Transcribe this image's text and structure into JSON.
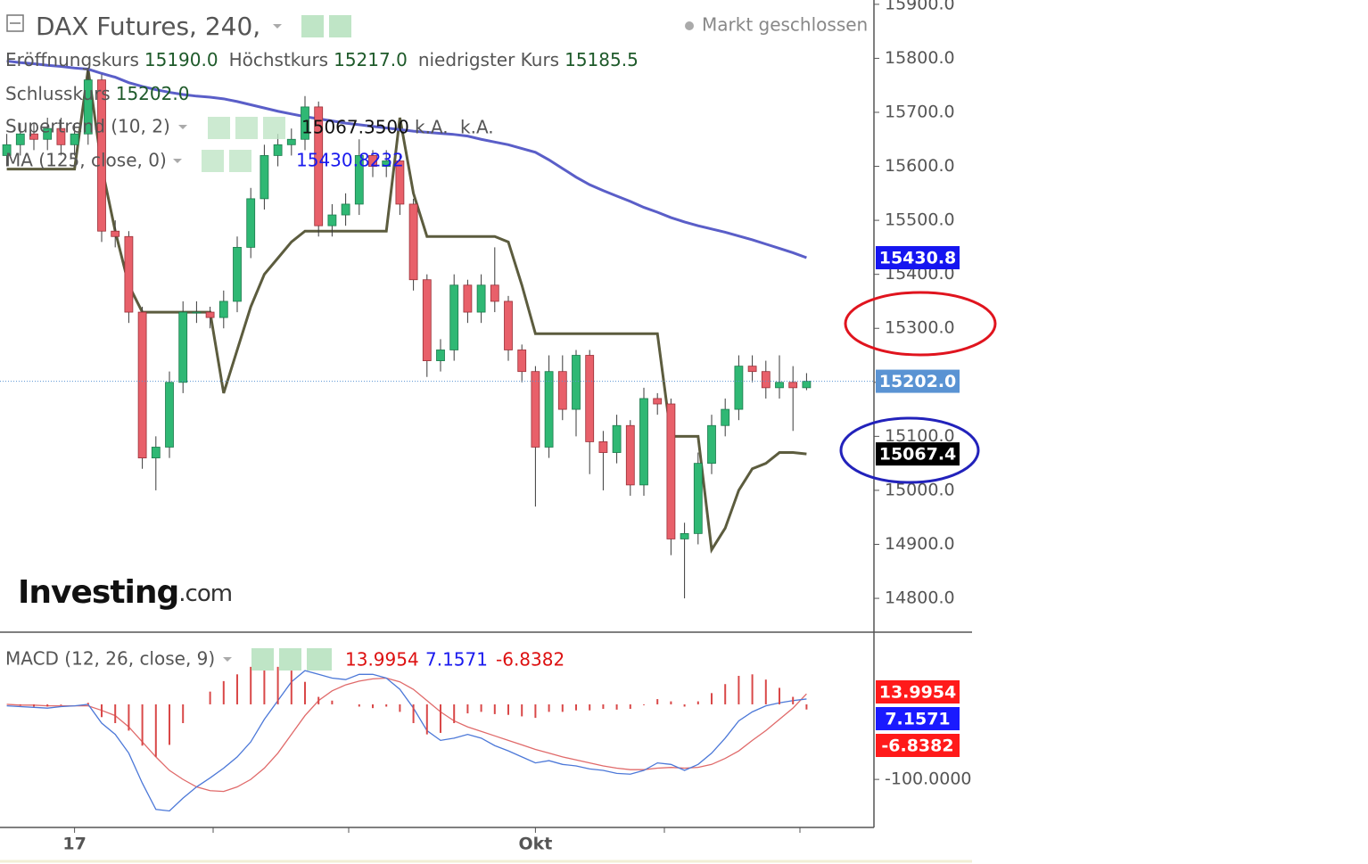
{
  "chart_data": [
    {
      "type": "candlestick",
      "title": "DAX Futures, 240,",
      "status": "Markt geschlossen",
      "ohlc_legend": [
        {
          "label": "Eröffnungskurs",
          "value": "15190.0"
        },
        {
          "label": "Höchstkurs",
          "value": "15217.0"
        },
        {
          "label": "niedrigster Kurs",
          "value": "15185.5"
        },
        {
          "label": "Schlusskurs",
          "value": "15202.0"
        }
      ],
      "logo": [
        "Investing",
        ".com"
      ],
      "categories": [
        null,
        null,
        null,
        null,
        null,
        "17",
        null,
        null,
        null,
        null,
        null,
        null,
        null,
        null,
        null,
        null,
        null,
        null,
        null,
        null,
        null,
        null,
        null,
        null,
        null,
        null,
        null,
        null,
        null,
        null,
        null,
        null,
        null,
        null,
        null,
        null,
        null,
        null,
        null,
        "Okt",
        null,
        null,
        null,
        null,
        null,
        null,
        null,
        null,
        null,
        null,
        null,
        null,
        null,
        null,
        null,
        null,
        null,
        null,
        null,
        null
      ],
      "open": [
        15620,
        15640,
        15660,
        15650,
        15670,
        15640,
        15660,
        15760,
        15480,
        15470,
        15330,
        15060,
        15080,
        15200,
        15330,
        15330,
        15320,
        15350,
        15450,
        15540,
        15620,
        15640,
        15650,
        15710,
        15490,
        15510,
        15530,
        15620,
        15600,
        15610,
        15530,
        15390,
        15240,
        15260,
        15380,
        15330,
        15380,
        15350,
        15260,
        15220,
        15080,
        15220,
        15150,
        15250,
        15090,
        15070,
        15120,
        15010,
        15170,
        15160,
        14910,
        14920,
        15050,
        15120,
        15150,
        15230,
        15220,
        15190,
        15200,
        15190
      ],
      "high": [
        15660,
        15680,
        15680,
        15690,
        15690,
        15680,
        15780,
        15770,
        15500,
        15480,
        15340,
        15100,
        15220,
        15350,
        15350,
        15340,
        15370,
        15470,
        15560,
        15640,
        15660,
        15670,
        15730,
        15720,
        15530,
        15550,
        15650,
        15630,
        15630,
        15620,
        15540,
        15400,
        15280,
        15400,
        15390,
        15400,
        15450,
        15360,
        15270,
        15230,
        15250,
        15250,
        15260,
        15260,
        15110,
        15140,
        15130,
        15190,
        15180,
        15170,
        14940,
        15070,
        15140,
        15170,
        15250,
        15250,
        15240,
        15250,
        15230,
        15217
      ],
      "low": [
        15600,
        15620,
        15630,
        15630,
        15620,
        15620,
        15640,
        15460,
        15450,
        15310,
        15040,
        15000,
        15060,
        15180,
        15310,
        15300,
        15300,
        15330,
        15430,
        15520,
        15600,
        15620,
        15630,
        15470,
        15470,
        15490,
        15510,
        15580,
        15580,
        15510,
        15370,
        15210,
        15220,
        15240,
        15310,
        15310,
        15330,
        15240,
        15200,
        14970,
        15060,
        15130,
        15100,
        15030,
        15000,
        15050,
        14990,
        14990,
        15140,
        14880,
        14800,
        14900,
        15030,
        15100,
        15130,
        15200,
        15170,
        15170,
        15110,
        15185.5
      ],
      "close": [
        15640,
        15660,
        15650,
        15670,
        15640,
        15660,
        15760,
        15480,
        15470,
        15330,
        15060,
        15080,
        15200,
        15330,
        15330,
        15320,
        15350,
        15450,
        15540,
        15620,
        15640,
        15650,
        15710,
        15490,
        15510,
        15530,
        15620,
        15600,
        15610,
        15530,
        15390,
        15240,
        15260,
        15380,
        15330,
        15380,
        15350,
        15260,
        15220,
        15080,
        15220,
        15150,
        15250,
        15090,
        15070,
        15120,
        15010,
        15170,
        15160,
        14910,
        14920,
        15050,
        15120,
        15150,
        15230,
        15220,
        15190,
        15200,
        15190,
        15202
      ],
      "up_color": "#2fb874",
      "down_color": "#e8606a",
      "ylim": [
        14739,
        15908
      ],
      "yticks": [
        {
          "value": 14800,
          "label": "14800.0"
        },
        {
          "value": 14900,
          "label": "14900.0"
        },
        {
          "value": 15000,
          "label": "15000.0"
        },
        {
          "value": 15100,
          "label": "15100.0"
        },
        {
          "value": 15200,
          "label": "15200.0"
        },
        {
          "value": 15300,
          "label": "15300.0"
        },
        {
          "value": 15400,
          "label": "15400.0"
        },
        {
          "value": 15500,
          "label": "15500.0"
        },
        {
          "value": 15600,
          "label": "15600.0"
        },
        {
          "value": 15700,
          "label": "15700.0"
        },
        {
          "value": 15800,
          "label": "15800.0"
        },
        {
          "value": 15900,
          "label": "15900.0"
        }
      ],
      "overlays": [
        {
          "name": "Supertrend (10, 2)",
          "color": "#5c5c3e",
          "value_label": "15067.3500",
          "extra_labels": [
            "k.A.",
            "k.A."
          ],
          "values": [
            15595,
            15595,
            15595,
            15595,
            15595,
            15595,
            15780,
            15600,
            15480,
            15380,
            15330,
            15330,
            15330,
            15330,
            15330,
            15330,
            15180,
            15260,
            15340,
            15400,
            15430,
            15460,
            15480,
            15480,
            15480,
            15480,
            15480,
            15480,
            15480,
            15690,
            15550,
            15470,
            15470,
            15470,
            15470,
            15470,
            15470,
            15460,
            15380,
            15290,
            15290,
            15290,
            15290,
            15290,
            15290,
            15290,
            15290,
            15290,
            15290,
            15100,
            15100,
            15100,
            14890,
            14930,
            15000,
            15040,
            15050,
            15070,
            15070,
            15067.35
          ]
        },
        {
          "name": "MA (125, close, 0)",
          "color": "#5a5ec8",
          "label_color": "#1a1aee",
          "values": [
            15795,
            15792,
            15790,
            15787,
            15785,
            15782,
            15780,
            15772,
            15765,
            15755,
            15748,
            15742,
            15737,
            15733,
            15730,
            15728,
            15725,
            15720,
            15714,
            15708,
            15702,
            15697,
            15692,
            15688,
            15684,
            15680,
            15677,
            15674,
            15671,
            15668,
            15665,
            15663,
            15661,
            15659,
            15656,
            15650,
            15645,
            15640,
            15633,
            15626,
            15612,
            15596,
            15580,
            15566,
            15555,
            15545,
            15535,
            15524,
            15515,
            15505,
            15497,
            15490,
            15484,
            15478,
            15471,
            15464,
            15456,
            15448,
            15440,
            15430.8232
          ]
        }
      ],
      "price_badges": [
        {
          "value": 15430.8,
          "label": "15430.8",
          "color": "#1515f0"
        },
        {
          "value": 15202,
          "label": "15202.0",
          "color": "#5a93d3"
        },
        {
          "value": 15067.4,
          "label": "15067.4",
          "color": "#000000"
        }
      ]
    },
    {
      "type": "line",
      "title": "MACD (12, 26, close, 9)",
      "ylim": [
        -164,
        95
      ],
      "yticks": [
        {
          "value": -100,
          "label": "-100.0000"
        }
      ],
      "series": [
        {
          "color": "#e06a6a",
          "badge_color": "#ff1a1a",
          "style": "line",
          "values": [
            0,
            -1,
            -1,
            -2,
            -2,
            -2,
            -2,
            -8,
            -15,
            -30,
            -50,
            -70,
            -88,
            -100,
            -110,
            -115,
            -116,
            -110,
            -100,
            -85,
            -65,
            -40,
            -15,
            5,
            18,
            26,
            31,
            34,
            35,
            30,
            20,
            5,
            -10,
            -22,
            -30,
            -36,
            -42,
            -48,
            -54,
            -60,
            -65,
            -70,
            -74,
            -78,
            -82,
            -85,
            -87,
            -87,
            -85,
            -84,
            -85,
            -84,
            -80,
            -72,
            -62,
            -48,
            -35,
            -20,
            -5,
            13.9954
          ]
        },
        {
          "color": "#4c78d8",
          "badge_color": "#1a1aff",
          "style": "line",
          "values": [
            -2,
            -3,
            -4,
            -5,
            -3,
            -2,
            0,
            -25,
            -40,
            -65,
            -105,
            -140,
            -142,
            -125,
            -110,
            -98,
            -85,
            -70,
            -50,
            -20,
            5,
            30,
            45,
            40,
            35,
            33,
            40,
            40,
            35,
            20,
            -5,
            -35,
            -48,
            -45,
            -40,
            -45,
            -55,
            -62,
            -70,
            -78,
            -75,
            -80,
            -82,
            -86,
            -88,
            -92,
            -93,
            -88,
            -78,
            -80,
            -88,
            -80,
            -65,
            -45,
            -22,
            -10,
            -2,
            2,
            5,
            7.1571
          ]
        },
        {
          "color": "#d94848",
          "badge_color": "#ff1a1a",
          "style": "bar",
          "values": [
            0,
            -2,
            -3,
            -3,
            -1,
            0,
            2,
            -17,
            -25,
            -35,
            -55,
            -70,
            -54,
            -25,
            0,
            17,
            31,
            40,
            50,
            50,
            50,
            45,
            30,
            10,
            5,
            0,
            -3,
            -5,
            -3,
            -10,
            -25,
            -40,
            -38,
            -25,
            -12,
            -10,
            -13,
            -14,
            -16,
            -18,
            -10,
            -10,
            -8,
            -8,
            -6,
            -7,
            -6,
            -1,
            7,
            4,
            -3,
            4,
            15,
            27,
            38,
            40,
            33,
            22,
            10,
            -6.8382
          ]
        }
      ]
    }
  ]
}
